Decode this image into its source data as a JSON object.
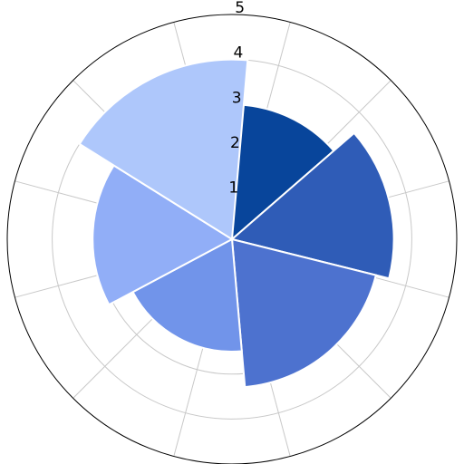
{
  "chart_data": {
    "type": "polar-bar",
    "title": "",
    "radial_ticks": [
      "1",
      "2",
      "3",
      "4",
      "5"
    ],
    "rlim": [
      0,
      5
    ],
    "spoke_count": 12,
    "grid": true,
    "legend": "none",
    "bars": [
      {
        "start_deg": 0,
        "end_deg": 49,
        "value": 3.0,
        "color": "#08459b"
      },
      {
        "start_deg": 49,
        "end_deg": 104,
        "value": 3.6,
        "color": "#2f5cb7"
      },
      {
        "start_deg": 104,
        "end_deg": 175,
        "value": 3.3,
        "color": "#4d72cf"
      },
      {
        "start_deg": 175,
        "end_deg": 242,
        "value": 2.5,
        "color": "#7194ea"
      },
      {
        "start_deg": 242,
        "end_deg": 302,
        "value": 3.1,
        "color": "#91aef7"
      },
      {
        "start_deg": 302,
        "end_deg": 365,
        "value": 4.0,
        "color": "#aec7fb"
      }
    ]
  }
}
